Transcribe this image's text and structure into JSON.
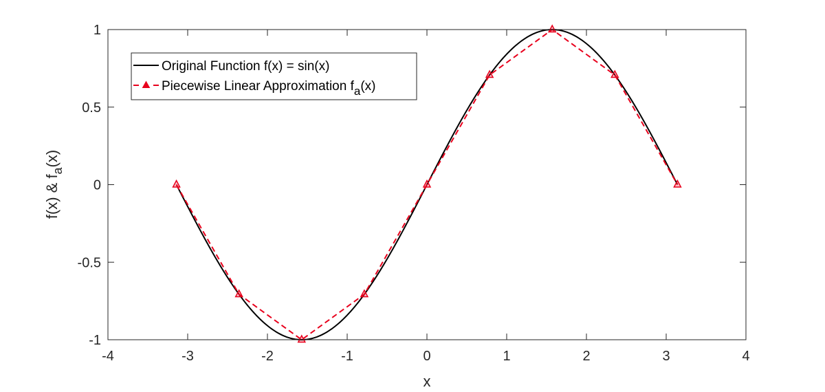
{
  "chart_data": {
    "type": "line",
    "title": "",
    "xlabel": "x",
    "ylabel": "f(x) & f_a(x)",
    "ylabel_parts": {
      "pre": "f(x) & f",
      "sub": "a",
      "post": "(x)"
    },
    "xlim": [
      -4,
      4
    ],
    "ylim": [
      -1,
      1
    ],
    "xticks": [
      -4,
      -3,
      -2,
      -1,
      0,
      1,
      2,
      3,
      4
    ],
    "xtick_labels": [
      "-4",
      "-3",
      "-2",
      "-1",
      "0",
      "1",
      "2",
      "3",
      "4"
    ],
    "yticks": [
      -1,
      -0.5,
      0,
      0.5,
      1
    ],
    "ytick_labels": [
      "-1",
      "-0.5",
      "0",
      "0.5",
      "1"
    ],
    "grid": false,
    "legend_position": "upper left",
    "series": [
      {
        "name": "Original Function f(x) = sin(x)",
        "style": "solid",
        "color": "#000000",
        "marker": "none",
        "function": "sin",
        "x_range": [
          -3.1416,
          3.1416
        ]
      },
      {
        "name": "Piecewise Linear Approximation f_a(x)",
        "label_parts": {
          "pre": "Piecewise Linear Approximation f",
          "sub": "a",
          "post": "(x)"
        },
        "style": "dashed",
        "color": "#e8001c",
        "marker": "triangle",
        "x": [
          -3.1416,
          -2.3562,
          -1.5708,
          -0.7854,
          0,
          0.7854,
          1.5708,
          2.3562,
          3.1416
        ],
        "y": [
          0,
          -0.7071,
          -1,
          -0.7071,
          0,
          0.7071,
          1,
          0.7071,
          0
        ]
      }
    ]
  },
  "legend": {
    "entry1_label": "Original Function f(x) = sin(x)",
    "entry2_pre": "Piecewise Linear Approximation f",
    "entry2_sub": "a",
    "entry2_post": "(x)"
  },
  "axes": {
    "xlabel": "x",
    "ylabel_pre": "f(x) & f",
    "ylabel_sub": "a",
    "ylabel_post": "(x)"
  }
}
